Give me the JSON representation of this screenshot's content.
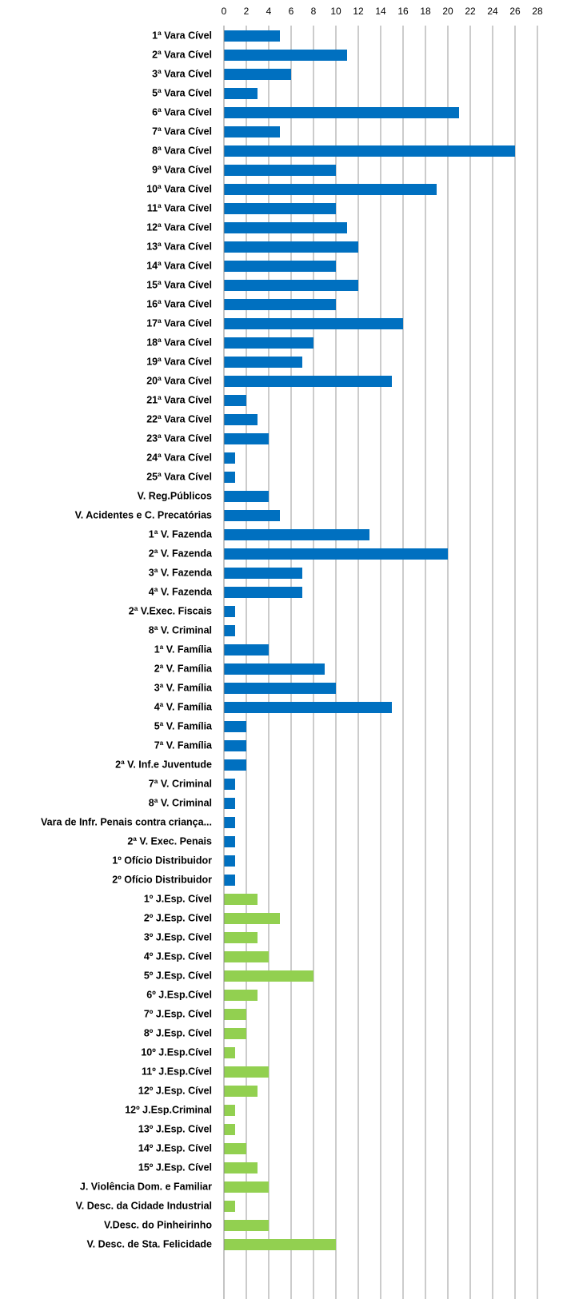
{
  "chart_data": {
    "type": "bar",
    "orientation": "horizontal",
    "categories": [
      "1ª Vara Cível",
      "2ª Vara Cível",
      "3ª Vara Cível",
      "5ª Vara Cível",
      "6ª Vara Cível",
      "7ª Vara Cível",
      "8ª Vara Cível",
      "9ª Vara Cível",
      "10ª Vara Cível",
      "11ª Vara Cível",
      "12ª Vara Cível",
      "13ª Vara Cível",
      "14ª Vara Cível",
      "15ª Vara Cível",
      "16ª Vara Cível",
      "17ª Vara Cível",
      "18ª Vara Cível",
      "19ª Vara Cível",
      "20ª Vara Cível",
      "21ª Vara Cível",
      "22ª Vara Cível",
      "23ª Vara Cível",
      "24ª Vara Cível",
      "25ª Vara Cível",
      "V. Reg.Públicos",
      "V. Acidentes e C. Precatórias",
      "1ª V. Fazenda",
      "2ª V. Fazenda",
      "3ª V. Fazenda",
      "4ª V. Fazenda",
      "2ª V.Exec. Fiscais",
      "8ª V. Criminal",
      "1ª V. Família",
      "2ª V. Família",
      "3ª V. Família",
      "4ª V. Família",
      "5ª V. Família",
      "7ª V. Família",
      "2ª V. Inf.e Juventude",
      "7ª V. Criminal",
      "8ª V. Criminal",
      "Vara de Infr. Penais contra criança...",
      "2ª V. Exec. Penais",
      "1º Ofício Distribuidor",
      "2º Ofício Distribuidor",
      "1º J.Esp. Cível",
      "2º J.Esp. Cível",
      "3º J.Esp. Cível",
      "4º J.Esp. Cível",
      "5º J.Esp. Cível",
      "6º J.Esp.Cível",
      "7º J.Esp. Cível",
      "8º J.Esp. Cível",
      "10º J.Esp.Cível",
      "11º J.Esp.Cível",
      "12º J.Esp. Cível",
      "12º J.Esp.Criminal",
      "13º J.Esp. Cível",
      "14º J.Esp. Cível",
      "15º J.Esp. Cível",
      "J. Violência Dom. e Familiar",
      "V. Desc. da Cidade Industrial",
      "V.Desc. do Pinheirinho",
      "V. Desc. de Sta. Felicidade"
    ],
    "values": [
      5,
      11,
      6,
      3,
      21,
      5,
      26,
      10,
      19,
      10,
      11,
      12,
      10,
      12,
      10,
      16,
      8,
      7,
      15,
      2,
      3,
      4,
      1,
      1,
      4,
      5,
      13,
      20,
      7,
      7,
      1,
      1,
      4,
      9,
      10,
      15,
      2,
      2,
      2,
      1,
      1,
      1,
      1,
      1,
      1,
      3,
      5,
      3,
      4,
      8,
      3,
      2,
      2,
      1,
      4,
      3,
      1,
      1,
      2,
      3,
      4,
      1,
      4,
      10
    ],
    "colors": [
      "#0070c0",
      "#0070c0",
      "#0070c0",
      "#0070c0",
      "#0070c0",
      "#0070c0",
      "#0070c0",
      "#0070c0",
      "#0070c0",
      "#0070c0",
      "#0070c0",
      "#0070c0",
      "#0070c0",
      "#0070c0",
      "#0070c0",
      "#0070c0",
      "#0070c0",
      "#0070c0",
      "#0070c0",
      "#0070c0",
      "#0070c0",
      "#0070c0",
      "#0070c0",
      "#0070c0",
      "#0070c0",
      "#0070c0",
      "#0070c0",
      "#0070c0",
      "#0070c0",
      "#0070c0",
      "#0070c0",
      "#0070c0",
      "#0070c0",
      "#0070c0",
      "#0070c0",
      "#0070c0",
      "#0070c0",
      "#0070c0",
      "#0070c0",
      "#0070c0",
      "#0070c0",
      "#0070c0",
      "#0070c0",
      "#0070c0",
      "#0070c0",
      "#92d050",
      "#92d050",
      "#92d050",
      "#92d050",
      "#92d050",
      "#92d050",
      "#92d050",
      "#92d050",
      "#92d050",
      "#92d050",
      "#92d050",
      "#92d050",
      "#92d050",
      "#92d050",
      "#92d050",
      "#92d050",
      "#92d050",
      "#92d050",
      "#92d050"
    ],
    "xlim": [
      0,
      28
    ],
    "xticks": [
      0,
      2,
      4,
      6,
      8,
      10,
      12,
      14,
      16,
      18,
      20,
      22,
      24,
      26,
      28
    ],
    "grid": true
  }
}
